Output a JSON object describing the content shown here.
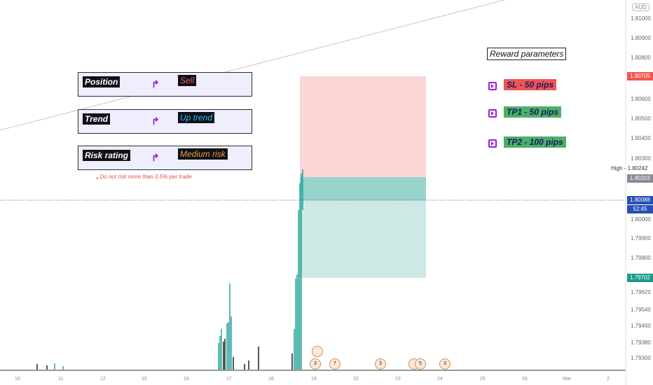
{
  "panels": [
    {
      "label": "Position",
      "value": "Sell",
      "value_color": "#ff5a5a"
    },
    {
      "label": "Trend",
      "value": "Up trend",
      "value_color": "#33b8ff"
    },
    {
      "label": "Risk rating",
      "value": "Medium risk",
      "value_color": "#f0a23a"
    }
  ],
  "risk_note": "Do not risk more than 0.5% per trade",
  "reward": {
    "title": "Reward parameters",
    "items": [
      "SL - 50 pips",
      "TP1 - 50 pips",
      "TP2 - 100 pips"
    ]
  },
  "price_axis": {
    "currency": "AUD",
    "ticks": [
      "1.81000",
      "1.80900",
      "1.80800",
      "1.80600",
      "1.80500",
      "1.80400",
      "1.80300",
      "1.80000",
      "1.79900",
      "1.79800",
      "1.79620",
      "1.79540",
      "1.79460",
      "1.79380",
      "1.79300"
    ],
    "badges": {
      "sl_price": "1.80705",
      "entry_price": "1.80203",
      "current_price": "1.80088",
      "countdown": "52:45",
      "target_price": "1.79702"
    },
    "high_label": "High",
    "high_value": "1.80242"
  },
  "time_axis": [
    "10",
    "11",
    "12",
    "15",
    "16",
    "17",
    "18",
    "19",
    "22",
    "23",
    "24",
    "25",
    "26",
    "Mar",
    "2"
  ],
  "events": [
    {
      "count": ""
    },
    {
      "count": "3"
    },
    {
      "count": "7"
    },
    {
      "count": "3"
    },
    {
      "count": ""
    },
    {
      "count": "5"
    },
    {
      "count": "3"
    }
  ],
  "colors": {
    "sl_zone": "#fbd6d6",
    "tp_zone": "#cde9e6",
    "tp_zone_dark": "#98d3cc",
    "accent": "#9b1ddb",
    "current_line": "#3a57c7"
  }
}
